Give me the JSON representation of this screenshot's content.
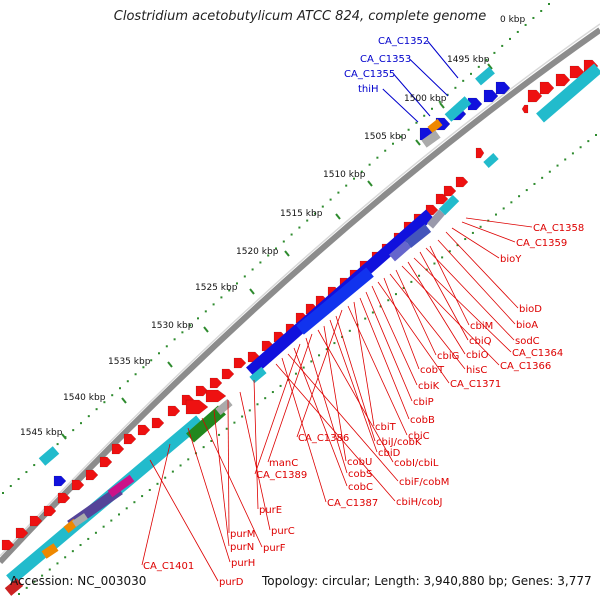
{
  "title": "Clostridium acetobutylicum ATCC 824, complete genome",
  "footer": {
    "accession": "Accession: NC_003030",
    "summary": "Topology: circular; Length: 3,940,880 bp; Genes: 3,777"
  },
  "colors": {
    "backbone": "#8c8c8c",
    "tick": "#2e8b2e",
    "forward_gene": "#ee1111",
    "cyan_gene": "#22bbcc",
    "blue_gene": "#1111dd",
    "label_blue": "#0000cc",
    "label_red": "#dd0000"
  },
  "ticks": [
    {
      "label": "1495 kbp"
    },
    {
      "label": "1500 kbp"
    },
    {
      "label": "1505 kbp"
    },
    {
      "label": "1510 kbp"
    },
    {
      "label": "1515 kbp"
    },
    {
      "label": "1520 kbp"
    },
    {
      "label": "1525 kbp"
    },
    {
      "label": "1530 kbp"
    },
    {
      "label": "1535 kbp"
    },
    {
      "label": "1540 kbp"
    },
    {
      "label": "1545 kbp"
    }
  ],
  "top_tick_fragment": "0 kbp",
  "labels_blue": [
    "CA_C1352",
    "CA_C1353",
    "CA_C1355",
    "thiH"
  ],
  "labels_red": [
    "CA_C1358",
    "CA_C1359",
    "bioY",
    "bioD",
    "bioA",
    "cbiM",
    "sodC",
    "cbiQ",
    "CA_C1364",
    "cbiO",
    "CA_C1366",
    "cbiG",
    "hisC",
    "cobT",
    "CA_C1371",
    "cbiK",
    "cbiP",
    "cobB",
    "cbiT",
    "cbiC",
    "CA_C1386",
    "cbiJ/cobK",
    "cbiD",
    "cobU",
    "cobI/cbiL",
    "manC",
    "cobS",
    "CA_C1389",
    "cobC",
    "cbiF/cobM",
    "CA_C1387",
    "cbiH/cobJ",
    "purE",
    "purC",
    "purM",
    "purN",
    "purF",
    "purH",
    "CA_C1401",
    "purD"
  ]
}
